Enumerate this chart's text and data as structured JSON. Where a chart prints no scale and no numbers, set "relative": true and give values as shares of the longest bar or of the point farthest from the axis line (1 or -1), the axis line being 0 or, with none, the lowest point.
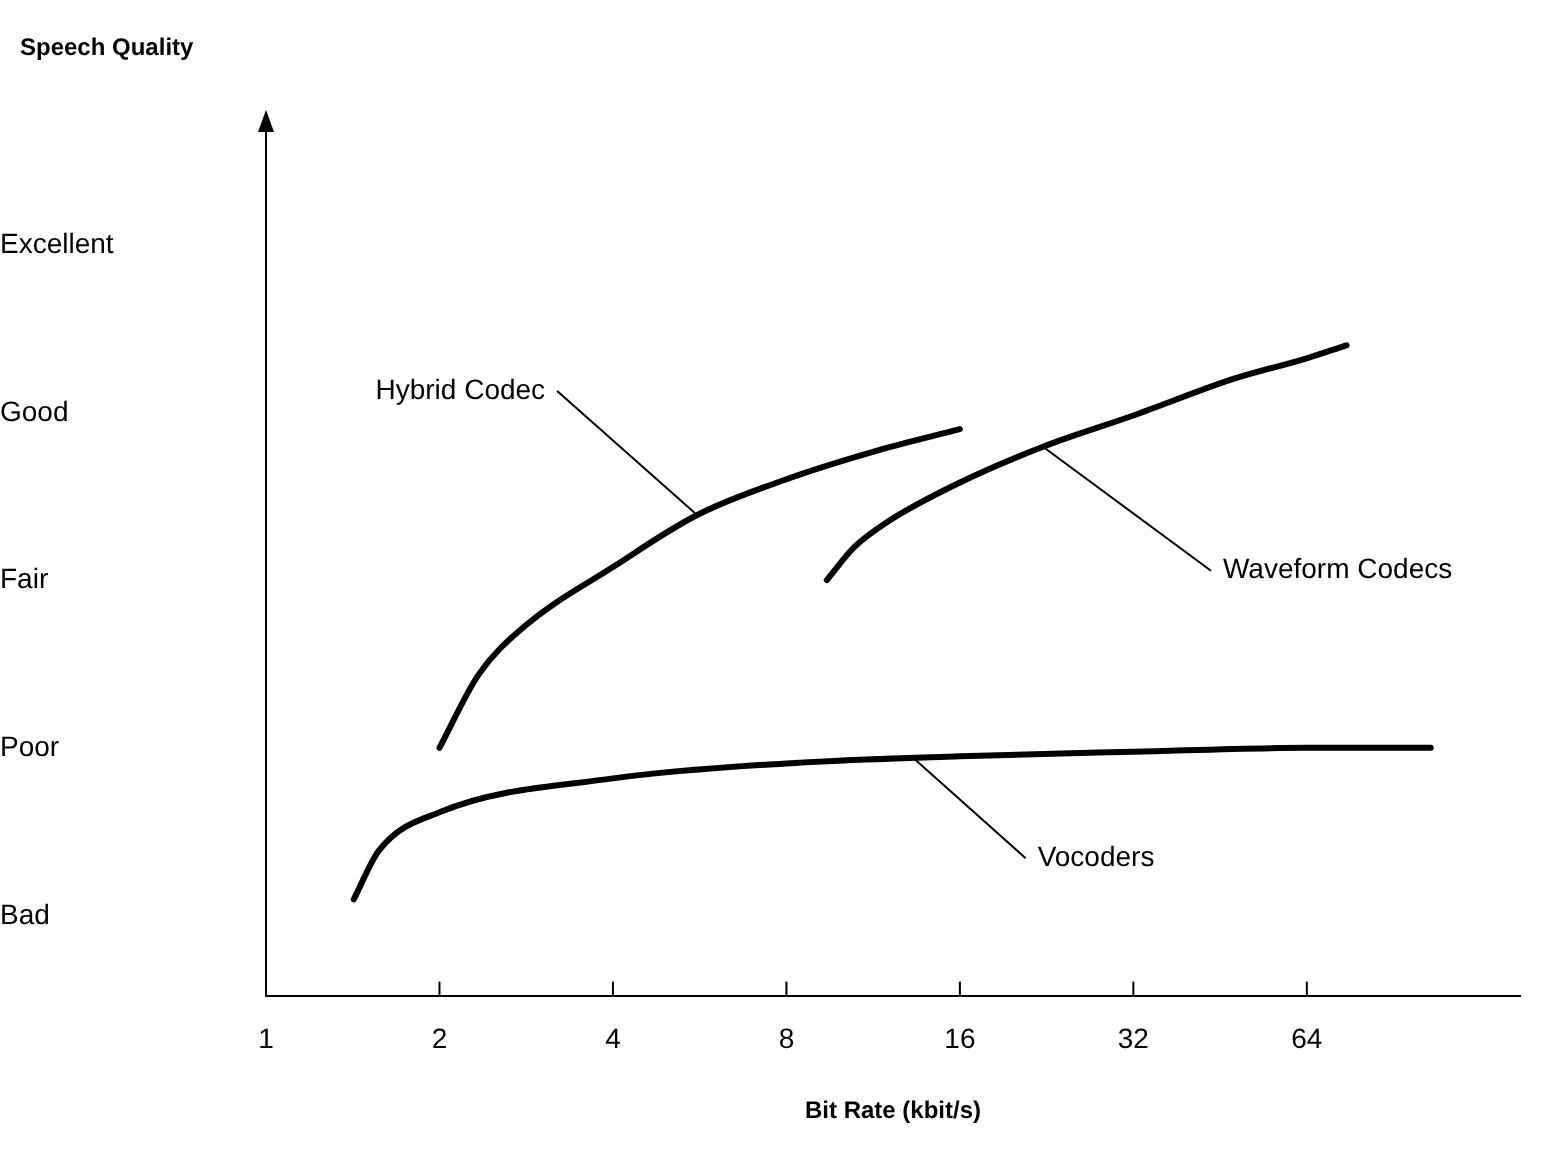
{
  "chart_data": {
    "type": "line",
    "xlabel": "Bit Rate (kbit/s)",
    "log": "x",
    "relative": true,
    "xlim": [
      1,
      150
    ],
    "xticks": [
      1,
      2,
      4,
      8,
      16,
      32,
      64
    ],
    "y_categories": [
      "Excellent",
      "Good",
      "Fair",
      "Poor",
      "Bad"
    ],
    "grid": false,
    "legend": false,
    "marker": "none",
    "line_style": "solid",
    "series": [
      {
        "color": "#000000",
        "x": [
          2,
          2.34,
          2.82,
          4,
          5.6,
          8,
          11.5,
          16
        ],
        "values": [
          0.381,
          0.494,
          0.569,
          0.659,
          0.739,
          0.794,
          0.838,
          0.871
        ]
      },
      {
        "color": "#000000",
        "x": [
          9.4,
          10.5,
          12,
          16,
          22.3,
          32,
          48,
          64,
          75
        ],
        "values": [
          0.639,
          0.69,
          0.729,
          0.789,
          0.844,
          0.892,
          0.949,
          0.98,
          1
        ]
      },
      {
        "color": "#000000",
        "x": [
          1.42,
          1.57,
          2,
          4,
          8,
          16,
          32,
          64,
          105
        ],
        "values": [
          0.148,
          0.223,
          0.282,
          0.334,
          0.357,
          0.368,
          0.375,
          0.381,
          0.381
        ]
      }
    ],
    "annotations": [
      {
        "text": "Hybrid Codec",
        "x": 5.6,
        "y": 0.739
      },
      {
        "text": "Waveform Codecs",
        "x": 22.3,
        "y": 0.844
      },
      {
        "text": "Vocoders",
        "x": 13.3,
        "y": 0.365
      },
      "Speech Quality"
    ]
  }
}
